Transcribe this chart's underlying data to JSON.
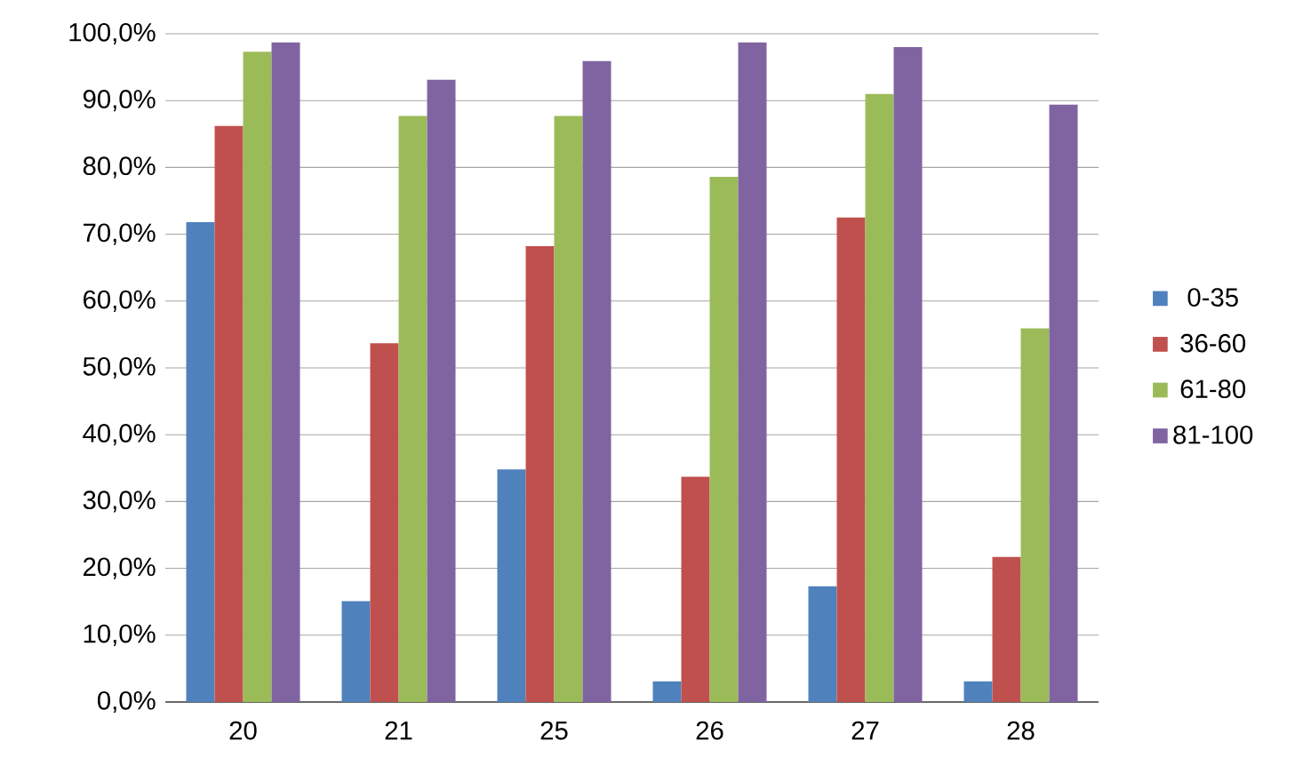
{
  "chart_data": {
    "type": "bar",
    "categories": [
      "20",
      "21",
      "25",
      "26",
      "27",
      "28"
    ],
    "series": [
      {
        "name": "0-35",
        "color": "#4f81bd",
        "values": [
          71.8,
          15.1,
          34.8,
          3.1,
          17.3,
          3.1
        ]
      },
      {
        "name": "36-60",
        "color": "#c0504d",
        "values": [
          86.2,
          53.7,
          68.2,
          33.7,
          72.5,
          21.7
        ]
      },
      {
        "name": "61-80",
        "color": "#9bbb59",
        "values": [
          97.3,
          87.7,
          87.7,
          78.6,
          91.0,
          55.9
        ]
      },
      {
        "name": "81-100",
        "color": "#8064a2",
        "values": [
          98.7,
          93.1,
          95.9,
          98.7,
          98.0,
          89.4
        ]
      }
    ],
    "ylim": [
      0,
      100
    ],
    "yticks": [
      {
        "value": 0,
        "label": "0,0%"
      },
      {
        "value": 10,
        "label": "10,0%"
      },
      {
        "value": 20,
        "label": "20,0%"
      },
      {
        "value": 30,
        "label": "30,0%"
      },
      {
        "value": 40,
        "label": "40,0%"
      },
      {
        "value": 50,
        "label": "50,0%"
      },
      {
        "value": 60,
        "label": "60,0%"
      },
      {
        "value": 70,
        "label": "70,0%"
      },
      {
        "value": 80,
        "label": "80,0%"
      },
      {
        "value": 90,
        "label": "90,0%"
      },
      {
        "value": 100,
        "label": "100,0%"
      }
    ],
    "grid": "y",
    "legend": "right"
  }
}
